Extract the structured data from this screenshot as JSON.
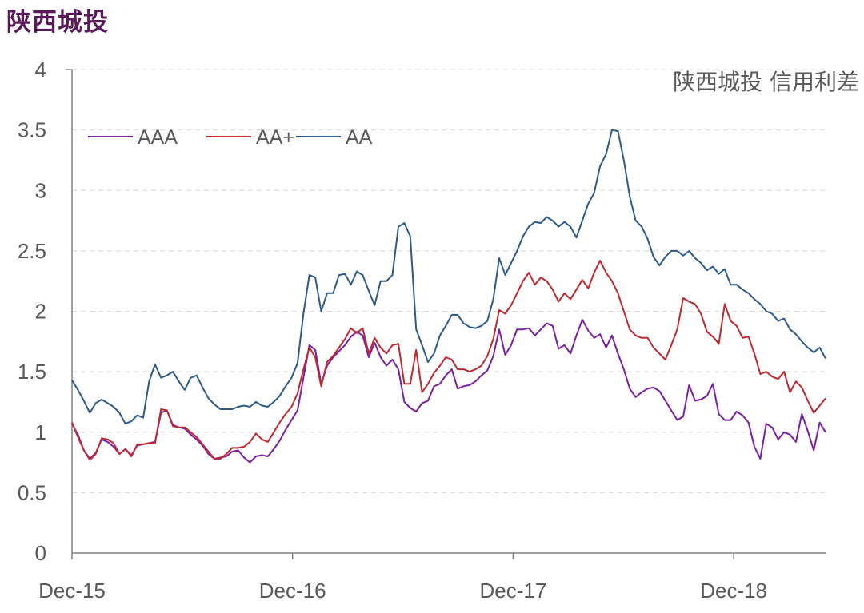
{
  "header": {
    "title": "陕西城投"
  },
  "chart_data": {
    "type": "line",
    "title": "陕西城投 信用利差",
    "xlabel": "",
    "ylabel": "",
    "x_ticks": [
      "Dec-15",
      "Dec-16",
      "Dec-17",
      "Dec-18"
    ],
    "x_range": [
      "2015-12",
      "2019-05"
    ],
    "y_ticks": [
      "0",
      "0.5",
      "1",
      "1.5",
      "2",
      "2.5",
      "3",
      "3.5",
      "4"
    ],
    "ylim": [
      0,
      4
    ],
    "grid": "horizontal-dashed",
    "legend": "top-left",
    "series": [
      {
        "name": "AAA",
        "color": "#7b1fa2",
        "values": [
          1.07,
          0.98,
          0.85,
          0.78,
          0.83,
          0.94,
          0.92,
          0.88,
          0.82,
          0.86,
          0.81,
          0.89,
          0.9,
          0.91,
          0.92,
          1.16,
          1.18,
          1.06,
          1.04,
          1.03,
          0.98,
          0.94,
          0.89,
          0.82,
          0.78,
          0.79,
          0.8,
          0.84,
          0.85,
          0.79,
          0.75,
          0.8,
          0.81,
          0.8,
          0.86,
          0.93,
          1.02,
          1.1,
          1.18,
          1.45,
          1.72,
          1.68,
          1.4,
          1.55,
          1.62,
          1.67,
          1.72,
          1.79,
          1.83,
          1.8,
          1.62,
          1.74,
          1.62,
          1.55,
          1.6,
          1.52,
          1.25,
          1.2,
          1.17,
          1.24,
          1.26,
          1.38,
          1.4,
          1.47,
          1.52,
          1.36,
          1.38,
          1.39,
          1.42,
          1.47,
          1.51,
          1.63,
          1.85,
          1.64,
          1.72,
          1.85,
          1.85,
          1.86,
          1.8,
          1.85,
          1.9,
          1.88,
          1.69,
          1.72,
          1.65,
          1.8,
          1.93,
          1.84,
          1.78,
          1.81,
          1.7,
          1.8,
          1.65,
          1.52,
          1.36,
          1.29,
          1.33,
          1.36,
          1.37,
          1.34,
          1.26,
          1.18,
          1.1,
          1.13,
          1.39,
          1.26,
          1.27,
          1.3,
          1.4,
          1.15,
          1.1,
          1.1,
          1.17,
          1.14,
          1.08,
          0.88,
          0.78,
          1.07,
          1.04,
          0.94,
          1.0,
          0.98,
          0.92,
          1.15,
          1.01,
          0.85,
          1.08,
          1.0
        ]
      },
      {
        "name": "AA+",
        "color": "#c0282f",
        "values": [
          1.08,
          0.96,
          0.85,
          0.77,
          0.82,
          0.95,
          0.94,
          0.91,
          0.82,
          0.86,
          0.8,
          0.9,
          0.9,
          0.91,
          0.91,
          1.19,
          1.18,
          1.05,
          1.04,
          1.04,
          1.0,
          0.96,
          0.9,
          0.84,
          0.78,
          0.78,
          0.82,
          0.87,
          0.87,
          0.88,
          0.92,
          0.99,
          0.94,
          0.92,
          1.0,
          1.08,
          1.15,
          1.21,
          1.32,
          1.52,
          1.7,
          1.62,
          1.38,
          1.58,
          1.63,
          1.7,
          1.77,
          1.86,
          1.82,
          1.86,
          1.65,
          1.78,
          1.7,
          1.65,
          1.72,
          1.73,
          1.4,
          1.4,
          1.68,
          1.33,
          1.4,
          1.49,
          1.55,
          1.62,
          1.6,
          1.52,
          1.52,
          1.5,
          1.52,
          1.55,
          1.63,
          1.77,
          2.01,
          1.98,
          2.05,
          2.15,
          2.25,
          2.32,
          2.22,
          2.28,
          2.25,
          2.18,
          2.08,
          2.15,
          2.1,
          2.18,
          2.26,
          2.19,
          2.32,
          2.42,
          2.32,
          2.25,
          2.15,
          2.0,
          1.85,
          1.8,
          1.78,
          1.78,
          1.7,
          1.65,
          1.6,
          1.72,
          1.85,
          2.11,
          2.08,
          2.06,
          1.98,
          1.83,
          1.79,
          1.73,
          2.06,
          1.92,
          1.88,
          1.78,
          1.79,
          1.65,
          1.48,
          1.5,
          1.46,
          1.44,
          1.5,
          1.33,
          1.42,
          1.37,
          1.26,
          1.16,
          1.22,
          1.28
        ]
      },
      {
        "name": "AA",
        "color": "#2c5a8a",
        "values": [
          1.43,
          1.35,
          1.26,
          1.16,
          1.24,
          1.27,
          1.24,
          1.21,
          1.16,
          1.07,
          1.09,
          1.14,
          1.12,
          1.42,
          1.56,
          1.45,
          1.47,
          1.5,
          1.42,
          1.35,
          1.45,
          1.47,
          1.37,
          1.28,
          1.23,
          1.19,
          1.19,
          1.19,
          1.21,
          1.22,
          1.21,
          1.25,
          1.22,
          1.21,
          1.25,
          1.3,
          1.38,
          1.45,
          1.57,
          1.98,
          2.3,
          2.28,
          2.0,
          2.15,
          2.15,
          2.3,
          2.31,
          2.22,
          2.33,
          2.3,
          2.17,
          2.05,
          2.25,
          2.25,
          2.3,
          2.7,
          2.73,
          2.62,
          1.85,
          1.72,
          1.58,
          1.65,
          1.8,
          1.88,
          1.97,
          1.97,
          1.9,
          1.87,
          1.86,
          1.88,
          1.92,
          2.1,
          2.44,
          2.3,
          2.4,
          2.5,
          2.62,
          2.7,
          2.74,
          2.73,
          2.78,
          2.75,
          2.7,
          2.74,
          2.7,
          2.61,
          2.75,
          2.89,
          2.98,
          3.2,
          3.3,
          3.5,
          3.49,
          3.25,
          2.95,
          2.75,
          2.7,
          2.6,
          2.45,
          2.38,
          2.45,
          2.5,
          2.5,
          2.46,
          2.5,
          2.44,
          2.4,
          2.34,
          2.37,
          2.31,
          2.35,
          2.22,
          2.22,
          2.18,
          2.15,
          2.1,
          2.06,
          2.0,
          1.98,
          1.92,
          1.94,
          1.85,
          1.81,
          1.75,
          1.7,
          1.66,
          1.7,
          1.61
        ]
      }
    ]
  }
}
